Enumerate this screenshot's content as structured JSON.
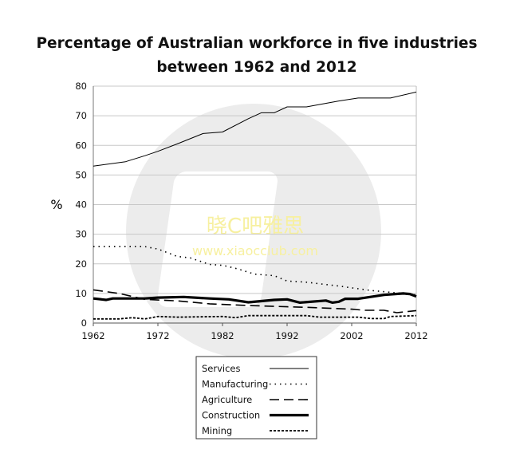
{
  "chart_data": {
    "type": "line",
    "title_lines": [
      "Percentage of Australian workforce in five industries",
      "between 1962 and 2012"
    ],
    "xlabel": "",
    "ylabel": "%",
    "xlim": [
      1962,
      2012
    ],
    "ylim": [
      0,
      80
    ],
    "x_ticks": [
      "1962",
      "1972",
      "1982",
      "1992",
      "2002",
      "2012"
    ],
    "y_ticks": [
      "0",
      "10",
      "20",
      "30",
      "40",
      "50",
      "60",
      "70",
      "80"
    ],
    "grid": "horizontal",
    "legend_placement": "bottom",
    "series": [
      {
        "name": "Services",
        "style": "solid-thin",
        "points": [
          [
            1962,
            53
          ],
          [
            1967,
            54.5
          ],
          [
            1970,
            56.5
          ],
          [
            1972,
            58
          ],
          [
            1975,
            60.5
          ],
          [
            1979,
            64
          ],
          [
            1982,
            64.5
          ],
          [
            1986,
            69
          ],
          [
            1988,
            71
          ],
          [
            1990,
            71
          ],
          [
            1992,
            73
          ],
          [
            1995,
            73
          ],
          [
            2000,
            75
          ],
          [
            2003,
            76
          ],
          [
            2008,
            76
          ],
          [
            2012,
            78
          ]
        ]
      },
      {
        "name": "Manufacturing",
        "style": "dotted",
        "points": [
          [
            1962,
            25.8
          ],
          [
            1970,
            25.8
          ],
          [
            1972,
            25
          ],
          [
            1975,
            22.5
          ],
          [
            1977,
            22
          ],
          [
            1980,
            19.8
          ],
          [
            1982,
            19.5
          ],
          [
            1984,
            18.5
          ],
          [
            1987,
            16.5
          ],
          [
            1990,
            16
          ],
          [
            1992,
            14.2
          ],
          [
            1995,
            13.8
          ],
          [
            2000,
            12.5
          ],
          [
            2005,
            11
          ],
          [
            2010,
            10
          ],
          [
            2012,
            9.5
          ]
        ]
      },
      {
        "name": "Agriculture",
        "style": "dashed",
        "points": [
          [
            1962,
            11.2
          ],
          [
            1966,
            10
          ],
          [
            1970,
            8
          ],
          [
            1975,
            7.5
          ],
          [
            1980,
            6.5
          ],
          [
            1985,
            6
          ],
          [
            1992,
            5.5
          ],
          [
            1995,
            5.3
          ],
          [
            2002,
            4.7
          ],
          [
            2004,
            4.3
          ],
          [
            2007,
            4.3
          ],
          [
            2009,
            3.5
          ],
          [
            2012,
            4.2
          ]
        ]
      },
      {
        "name": "Construction",
        "style": "solid-thick",
        "points": [
          [
            1962,
            8.3
          ],
          [
            1964,
            7.8
          ],
          [
            1965,
            8.3
          ],
          [
            1970,
            8.3
          ],
          [
            1972,
            8.6
          ],
          [
            1976,
            8.8
          ],
          [
            1980,
            8.3
          ],
          [
            1983,
            8
          ],
          [
            1986,
            7
          ],
          [
            1990,
            7.8
          ],
          [
            1992,
            8
          ],
          [
            1994,
            6.9
          ],
          [
            1998,
            7.6
          ],
          [
            1999,
            6.9
          ],
          [
            2000,
            7.2
          ],
          [
            2001,
            8.2
          ],
          [
            2003,
            8.2
          ],
          [
            2007,
            9.5
          ],
          [
            2010,
            10
          ],
          [
            2011,
            9.8
          ],
          [
            2012,
            9
          ]
        ]
      },
      {
        "name": "Mining",
        "style": "short-dashed",
        "points": [
          [
            1962,
            1.4
          ],
          [
            1966,
            1.4
          ],
          [
            1968,
            1.8
          ],
          [
            1970,
            1.4
          ],
          [
            1972,
            2.2
          ],
          [
            1975,
            2
          ],
          [
            1982,
            2.2
          ],
          [
            1984,
            1.8
          ],
          [
            1986,
            2.5
          ],
          [
            1995,
            2.5
          ],
          [
            1997,
            2
          ],
          [
            2003,
            2
          ],
          [
            2005,
            1.5
          ],
          [
            2007,
            1.5
          ],
          [
            2008,
            2.2
          ],
          [
            2012,
            2.5
          ]
        ]
      }
    ],
    "colors": {
      "lines": "#000000",
      "grid": "#c8c8c8",
      "watermark_circle": "#ececec",
      "watermark_text": "#f7f0a0"
    }
  },
  "watermark": {
    "line1": "晓C吧雅思",
    "line2": "www.xiaocclub.com"
  }
}
